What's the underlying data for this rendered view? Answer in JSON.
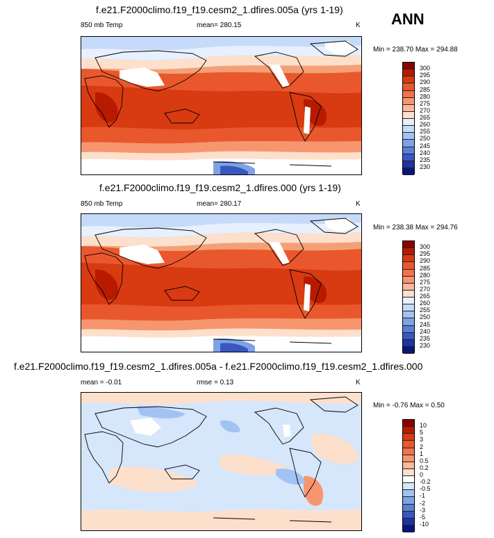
{
  "chart_data": [
    {
      "type": "heatmap",
      "title": "f.e21.F2000climo.f19_f19.cesm2_1.dfires.005a (yrs 1-19)",
      "variable": "850 mb Temp",
      "mean_label": "mean= 280.15",
      "mean": 280.15,
      "units": "K",
      "minmax_label": "Min = 238.70 Max = 294.88",
      "min": 238.7,
      "max": 294.88,
      "levels": [
        "300",
        "295",
        "290",
        "285",
        "280",
        "275",
        "270",
        "265",
        "260",
        "255",
        "250",
        "245",
        "240",
        "235",
        "230"
      ],
      "colors": [
        "#8b0000",
        "#b81a00",
        "#d83a12",
        "#e9582d",
        "#f2734e",
        "#f7956f",
        "#fbb99a",
        "#fde0cc",
        "#e6f0ff",
        "#c6dbfa",
        "#a2c2f2",
        "#7da3e6",
        "#5a80d6",
        "#3a57c0",
        "#1e33a4",
        "#0a1577"
      ]
    },
    {
      "type": "heatmap",
      "title": "f.e21.F2000climo.f19_f19.cesm2_1.dfires.000 (yrs 1-19)",
      "variable": "850 mb Temp",
      "mean_label": "mean= 280.17",
      "mean": 280.17,
      "units": "K",
      "minmax_label": "Min = 238.38 Max = 294.76",
      "min": 238.38,
      "max": 294.76,
      "levels": [
        "300",
        "295",
        "290",
        "285",
        "280",
        "275",
        "270",
        "265",
        "260",
        "255",
        "250",
        "245",
        "240",
        "235",
        "230"
      ],
      "colors": [
        "#8b0000",
        "#b81a00",
        "#d83a12",
        "#e9582d",
        "#f2734e",
        "#f7956f",
        "#fbb99a",
        "#fde0cc",
        "#e6f0ff",
        "#c6dbfa",
        "#a2c2f2",
        "#7da3e6",
        "#5a80d6",
        "#3a57c0",
        "#1e33a4",
        "#0a1577"
      ]
    },
    {
      "type": "heatmap",
      "title": "f.e21.F2000climo.f19_f19.cesm2_1.dfires.005a - f.e21.F2000climo.f19_f19.cesm2_1.dfires.000",
      "mean_label": "mean =  -0.01",
      "mean": -0.01,
      "rmse_label": "rmse =  0.13",
      "rmse": 0.13,
      "units": "K",
      "minmax_label": "Min =  -0.76 Max =  0.50",
      "min": -0.76,
      "max": 0.5,
      "levels": [
        "10",
        "5",
        "3",
        "2",
        "1",
        "0.5",
        "0.2",
        "0",
        "-0.2",
        "-0.5",
        "-1",
        "-2",
        "-3",
        "-5",
        "-10"
      ],
      "colors": [
        "#8b0000",
        "#b81a00",
        "#d83a12",
        "#e9582d",
        "#f2734e",
        "#f7956f",
        "#fbb99a",
        "#fde0cc",
        "#ffffff",
        "#d6e6fb",
        "#a2c2f2",
        "#7da3e6",
        "#5a80d6",
        "#3a57c0",
        "#1e33a4",
        "#0a1577"
      ]
    }
  ],
  "season": "ANN"
}
